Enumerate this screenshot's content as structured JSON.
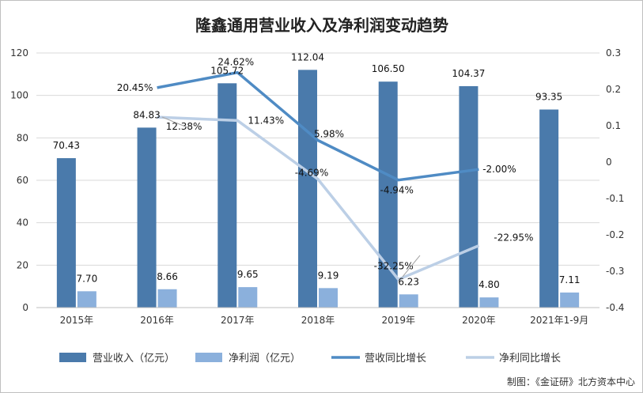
{
  "chart_data": {
    "type": "bar",
    "title": "隆鑫通用营业收入及净利润变动趋势",
    "categories": [
      "2015年",
      "2016年",
      "2017年",
      "2018年",
      "2019年",
      "2020年",
      "2021年1-9月"
    ],
    "ylim": [
      0,
      120
    ],
    "y_ticks": [
      "0",
      "20",
      "40",
      "60",
      "80",
      "100",
      "120"
    ],
    "y2lim": [
      -0.4,
      0.3
    ],
    "y2_ticks": [
      "-0.4",
      "-0.3",
      "-0.2",
      "-0.1",
      "0",
      "0.1",
      "0.2",
      "0.3"
    ],
    "grid": true,
    "legend_position": "bottom",
    "series": [
      {
        "name": "营业收入（亿元）",
        "kind": "bar",
        "axis": "left",
        "color": "#4a7aab",
        "values": [
          70.43,
          84.83,
          105.72,
          112.04,
          106.5,
          104.37,
          93.35
        ],
        "labels": [
          "70.43",
          "84.83",
          "105.72",
          "112.04",
          "106.50",
          "104.37",
          "93.35"
        ]
      },
      {
        "name": "净利润（亿元）",
        "kind": "bar",
        "axis": "left",
        "color": "#8bb0dc",
        "values": [
          7.7,
          8.66,
          9.65,
          9.19,
          6.23,
          4.8,
          7.11
        ],
        "labels": [
          "7.70",
          "8.66",
          "9.65",
          "9.19",
          "6.23",
          "4.80",
          "7.11"
        ]
      },
      {
        "name": "营收同比增长",
        "kind": "line",
        "axis": "right",
        "color": "#4f8bc4",
        "values": [
          null,
          0.2045,
          0.2462,
          0.0598,
          -0.0494,
          -0.02,
          null
        ],
        "labels": [
          "",
          "20.45%",
          "24.62%",
          "5.98%",
          "-4.94%",
          "-2.00%",
          ""
        ]
      },
      {
        "name": "净利同比增长",
        "kind": "line",
        "axis": "right",
        "color": "#bccfe6",
        "values": [
          null,
          0.1238,
          0.1143,
          -0.0469,
          -0.3225,
          -0.2295,
          null
        ],
        "labels": [
          "",
          "12.38%",
          "11.43%",
          "-4.69%",
          "-32.25%",
          "-22.95%",
          ""
        ]
      }
    ]
  },
  "source_note": "制图：《金证研》北方资本中心"
}
